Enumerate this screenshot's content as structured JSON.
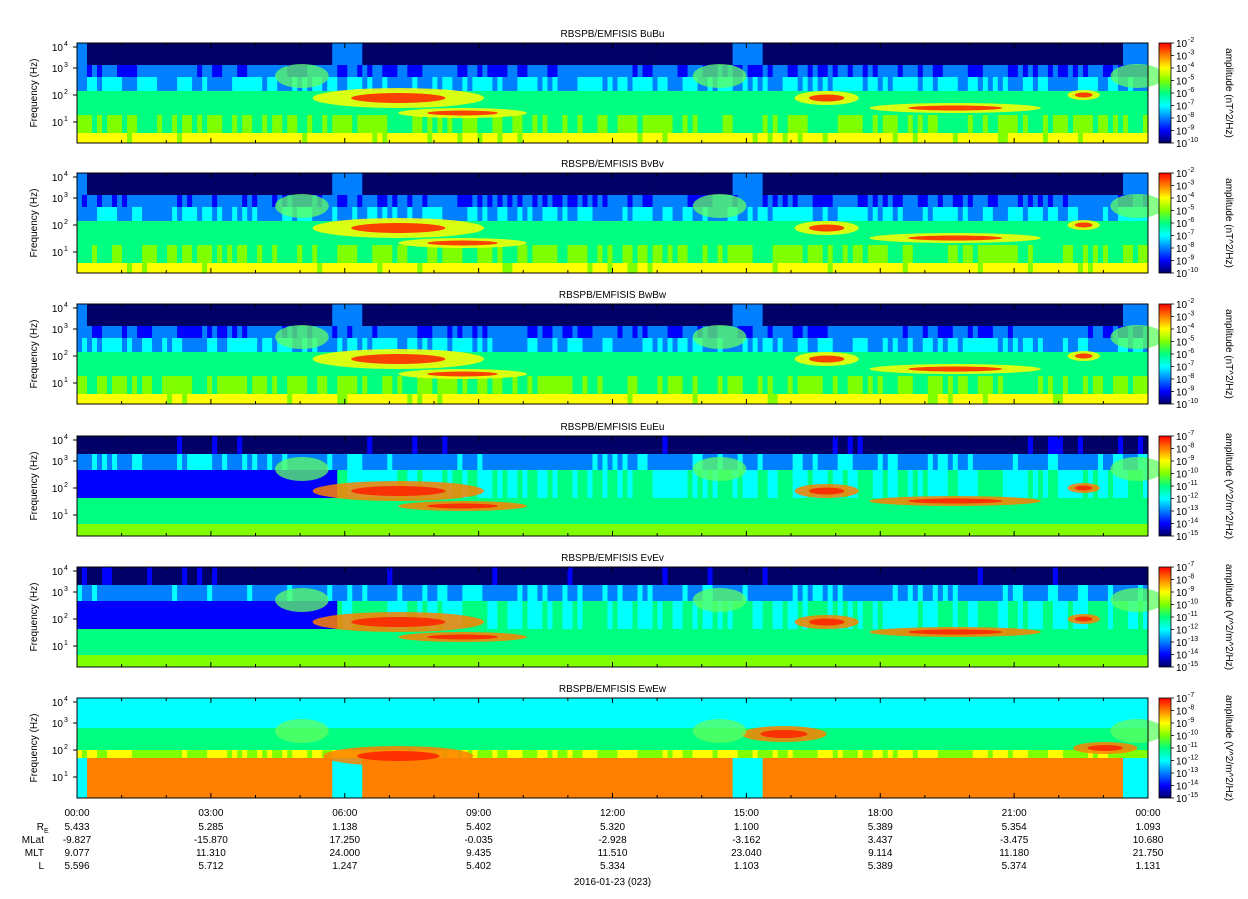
{
  "chart_data": {
    "type": "heatmap",
    "x_ticks": [
      "00:00",
      "03:00",
      "06:00",
      "09:00",
      "12:00",
      "15:00",
      "18:00",
      "21:00",
      "00:00"
    ],
    "date_label": "2016-01-23 (023)",
    "ephemeris": [
      {
        "label": "R",
        "sub": "E",
        "values": [
          "5.433",
          "5.285",
          "1.138",
          "5.402",
          "5.320",
          "1.100",
          "5.389",
          "5.354",
          "1.093"
        ]
      },
      {
        "label": "MLat",
        "sub": "",
        "values": [
          "-9.827",
          "-15.870",
          "17.250",
          "-0.035",
          "-2.928",
          "-3.162",
          "3.437",
          "-3.475",
          "10.680"
        ]
      },
      {
        "label": "MLT",
        "sub": "",
        "values": [
          "9.077",
          "11.310",
          "24.000",
          "9.435",
          "11.510",
          "23.040",
          "9.114",
          "11.180",
          "21.750"
        ]
      },
      {
        "label": "L",
        "sub": "",
        "values": [
          "5.596",
          "5.712",
          "1.247",
          "5.402",
          "5.334",
          "1.103",
          "5.389",
          "5.374",
          "1.131"
        ]
      }
    ],
    "ylabel": "Frequency (Hz)",
    "y_scale": "log",
    "y_ticks": [
      {
        "b": "10",
        "e": "4"
      },
      {
        "b": "10",
        "e": "3"
      },
      {
        "b": "10",
        "e": "2"
      },
      {
        "b": "10",
        "e": "1"
      }
    ],
    "colormap": [
      "#000066",
      "#0000ff",
      "#0080ff",
      "#00ffff",
      "#00ff80",
      "#80ff00",
      "#ffff00",
      "#ff8000",
      "#ff0000"
    ],
    "panels": [
      {
        "title": "RBSPB/EMFISIS  BuBu",
        "kind": "B",
        "cb_label": "amplitude (nT^2/Hz)",
        "cb_ticks": [
          "-2",
          "-3",
          "-4",
          "-5",
          "-6",
          "-7",
          "-8",
          "-9",
          "-10"
        ]
      },
      {
        "title": "RBSPB/EMFISIS  BvBv",
        "kind": "B",
        "cb_label": "amplitude (nT^2/Hz)",
        "cb_ticks": [
          "-2",
          "-3",
          "-4",
          "-5",
          "-6",
          "-7",
          "-8",
          "-9",
          "-10"
        ]
      },
      {
        "title": "RBSPB/EMFISIS  BwBw",
        "kind": "B",
        "cb_label": "amplitude (nT^2/Hz)",
        "cb_ticks": [
          "-2",
          "-3",
          "-4",
          "-5",
          "-6",
          "-7",
          "-8",
          "-9",
          "-10"
        ]
      },
      {
        "title": "RBSPB/EMFISIS  EuEu",
        "kind": "E",
        "cb_label": "amplitude (V^2/m^2/Hz)",
        "cb_ticks": [
          "-7",
          "-8",
          "-9",
          "-10",
          "-11",
          "-12",
          "-13",
          "-14",
          "-15"
        ]
      },
      {
        "title": "RBSPB/EMFISIS  EvEv",
        "kind": "E",
        "cb_label": "amplitude (V^2/m^2/Hz)",
        "cb_ticks": [
          "-7",
          "-8",
          "-9",
          "-10",
          "-11",
          "-12",
          "-13",
          "-14",
          "-15"
        ]
      },
      {
        "title": "RBSPB/EMFISIS  EwEw",
        "kind": "Ew",
        "cb_label": "amplitude (V^2/m^2/Hz)",
        "cb_ticks": [
          "-7",
          "-8",
          "-9",
          "-10",
          "-11",
          "-12",
          "-13",
          "-14",
          "-15"
        ]
      }
    ]
  }
}
